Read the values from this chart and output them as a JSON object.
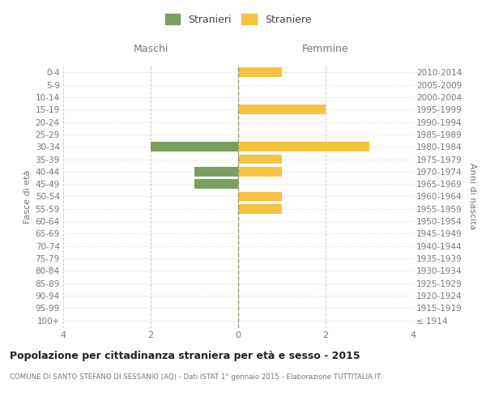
{
  "age_groups": [
    "100+",
    "95-99",
    "90-94",
    "85-89",
    "80-84",
    "75-79",
    "70-74",
    "65-69",
    "60-64",
    "55-59",
    "50-54",
    "45-49",
    "40-44",
    "35-39",
    "30-34",
    "25-29",
    "20-24",
    "15-19",
    "10-14",
    "5-9",
    "0-4"
  ],
  "birth_years": [
    "≤ 1914",
    "1915-1919",
    "1920-1924",
    "1925-1929",
    "1930-1934",
    "1935-1939",
    "1940-1944",
    "1945-1949",
    "1950-1954",
    "1955-1959",
    "1960-1964",
    "1965-1969",
    "1970-1974",
    "1975-1979",
    "1980-1984",
    "1985-1989",
    "1990-1994",
    "1995-1999",
    "2000-2004",
    "2005-2009",
    "2010-2014"
  ],
  "maschi": [
    0,
    0,
    0,
    0,
    0,
    0,
    0,
    0,
    0,
    0,
    0,
    -1,
    -1,
    0,
    -2,
    0,
    0,
    0,
    0,
    0,
    0
  ],
  "femmine": [
    0,
    0,
    0,
    0,
    0,
    0,
    0,
    0,
    0,
    1,
    1,
    0,
    1,
    1,
    3,
    0,
    0,
    2,
    0,
    0,
    1
  ],
  "color_maschi": "#7a9e5f",
  "color_femmine": "#f5c242",
  "background_color": "#ffffff",
  "grid_color": "#cccccc",
  "title": "Popolazione per cittadinanza straniera per età e sesso - 2015",
  "subtitle": "COMUNE DI SANTO STEFANO DI SESSANIO (AQ) - Dati ISTAT 1° gennaio 2015 - Elaborazione TUTTITALIA.IT",
  "xlabel_left": "Maschi",
  "xlabel_right": "Femmine",
  "ylabel_left": "Fasce di età",
  "ylabel_right": "Anni di nascita",
  "xlim": 4,
  "legend_stranieri": "Stranieri",
  "legend_straniere": "Straniere",
  "bar_height": 0.75
}
